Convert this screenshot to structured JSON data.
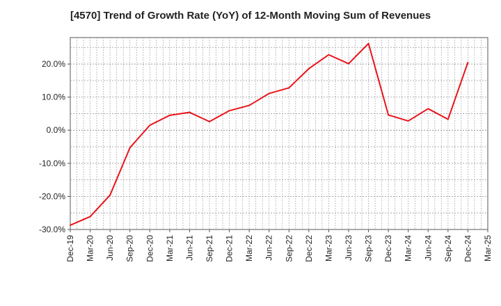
{
  "chart_data": {
    "type": "line",
    "title": "[4570]  Trend of Growth Rate (YoY) of 12-Month Moving Sum of Revenues",
    "xlabel": "",
    "ylabel": "",
    "ylim": [
      -30,
      28
    ],
    "y_ticks": [
      20,
      10,
      0,
      -10,
      -20,
      -30
    ],
    "y_tick_labels": [
      "20.0%",
      "10.0%",
      "0.0%",
      "-10.0%",
      "-20.0%",
      "-30.0%"
    ],
    "x_tick_labels": [
      "Dec-19",
      "Mar-20",
      "Jun-20",
      "Sep-20",
      "Dec-20",
      "Mar-21",
      "Jun-21",
      "Sep-21",
      "Dec-21",
      "Mar-22",
      "Jun-22",
      "Sep-22",
      "Dec-22",
      "Mar-23",
      "Jun-23",
      "Sep-23",
      "Dec-23",
      "Mar-24",
      "Jun-24",
      "Sep-24",
      "Dec-24",
      "Mar-25"
    ],
    "x": [
      "Dec-19",
      "Jan-20",
      "Feb-20",
      "Mar-20",
      "Apr-20",
      "May-20",
      "Jun-20",
      "Jul-20",
      "Aug-20",
      "Sep-20",
      "Oct-20",
      "Nov-20",
      "Dec-20",
      "Jan-21",
      "Feb-21",
      "Mar-21",
      "Apr-21",
      "May-21",
      "Jun-21",
      "Jul-21",
      "Aug-21",
      "Sep-21",
      "Oct-21",
      "Nov-21",
      "Dec-21",
      "Jan-22",
      "Feb-22",
      "Mar-22",
      "Apr-22",
      "May-22",
      "Jun-22",
      "Jul-22",
      "Aug-22",
      "Sep-22",
      "Oct-22",
      "Nov-22",
      "Dec-22",
      "Jan-23",
      "Feb-23",
      "Mar-23",
      "Apr-23",
      "May-23",
      "Jun-23",
      "Jul-23",
      "Aug-23",
      "Sep-23",
      "Oct-23",
      "Nov-23",
      "Dec-23",
      "Jan-24",
      "Feb-24",
      "Mar-24",
      "Apr-24",
      "May-24",
      "Jun-24",
      "Jul-24",
      "Aug-24",
      "Sep-24",
      "Oct-24",
      "Nov-24",
      "Dec-24",
      "Jan-25",
      "Feb-25",
      "Mar-25"
    ],
    "series": [
      {
        "values": [
          -28.7,
          null,
          null,
          -26.1,
          null,
          null,
          -19.6,
          null,
          null,
          -5.3,
          null,
          null,
          1.5,
          null,
          null,
          4.5,
          null,
          null,
          5.4,
          null,
          null,
          2.6,
          null,
          null,
          5.9,
          null,
          null,
          7.5,
          null,
          null,
          11.1,
          null,
          null,
          12.8,
          null,
          null,
          18.6,
          null,
          null,
          22.8,
          null,
          null,
          20.1,
          null,
          null,
          26.2,
          null,
          null,
          4.6,
          null,
          null,
          2.8,
          null,
          null,
          6.5,
          null,
          null,
          3.3,
          null,
          null,
          20.5,
          null,
          null,
          null
        ],
        "color": "#e8141b"
      }
    ],
    "grid": true
  }
}
